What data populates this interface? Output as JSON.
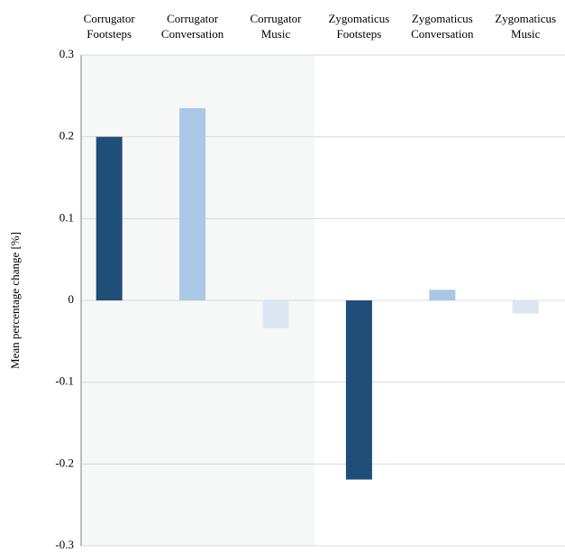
{
  "chart_data": {
    "type": "bar",
    "categories": [
      "Corrugator Footsteps",
      "Corrugator Conversation",
      "Corrugator Music",
      "Zygomaticus Footsteps",
      "Zygomaticus Conversation",
      "Zygomaticus Music"
    ],
    "values": [
      0.2,
      0.235,
      -0.034,
      -0.219,
      0.013,
      -0.016
    ],
    "colors": [
      "#1f4e79",
      "#a9c8e6",
      "#dce6f2",
      "#1f4e79",
      "#a9c8e6",
      "#dce6f2"
    ],
    "y_label": "Mean percentage change [%]",
    "ylim": [
      -0.3,
      0.3
    ],
    "yticks": [
      0.3,
      0.2,
      0.1,
      0,
      -0.1,
      -0.2,
      -0.3
    ],
    "grid": true
  }
}
